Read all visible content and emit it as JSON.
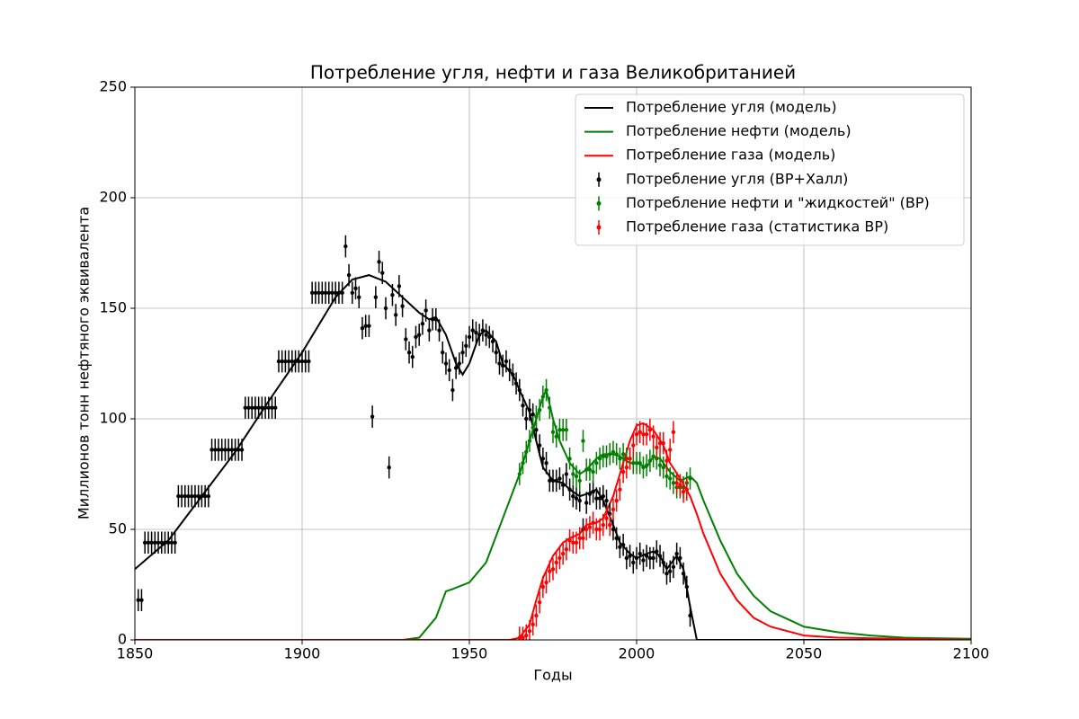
{
  "chart_data": {
    "type": "line",
    "title": "Потребление угля, нефти и газа Великобританией",
    "xlabel": "Годы",
    "ylabel": "Миллионов тонн нефтяного эквивалента",
    "xlim": [
      1850,
      2100
    ],
    "ylim": [
      0,
      250
    ],
    "xticks": [
      1850,
      1900,
      1950,
      2000,
      2050,
      2100
    ],
    "yticks": [
      0,
      50,
      100,
      150,
      200,
      250
    ],
    "grid": true,
    "legend": "upper right",
    "series": [
      {
        "name": "Потребление угля (модель)",
        "type": "line",
        "color": "#000000",
        "x": [
          1850,
          1860,
          1870,
          1880,
          1890,
          1900,
          1910,
          1915,
          1920,
          1925,
          1930,
          1935,
          1938,
          1940,
          1943,
          1946,
          1948,
          1950,
          1953,
          1955,
          1958,
          1960,
          1963,
          1965,
          1968,
          1970,
          1972,
          1975,
          1978,
          1980,
          1983,
          1985,
          1988,
          1990,
          1993,
          1995,
          1998,
          2000,
          2003,
          2005,
          2007,
          2009,
          2012,
          2014,
          2016,
          2018,
          2020,
          2100
        ],
        "values": [
          32,
          45,
          65,
          85,
          108,
          130,
          155,
          163,
          165,
          162,
          155,
          148,
          145,
          146,
          138,
          125,
          120,
          125,
          138,
          140,
          135,
          125,
          120,
          113,
          103,
          90,
          78,
          72,
          71,
          68,
          65,
          66,
          68,
          63,
          52,
          44,
          39,
          37,
          39,
          40,
          38,
          32,
          38,
          32,
          15,
          0,
          0,
          0
        ]
      },
      {
        "name": "Потребление нефти (модель)",
        "type": "line",
        "color": "#008000",
        "x": [
          1850,
          1930,
          1935,
          1940,
          1943,
          1945,
          1950,
          1955,
          1960,
          1965,
          1968,
          1970,
          1972,
          1973,
          1975,
          1977,
          1980,
          1983,
          1985,
          1988,
          1990,
          1993,
          1995,
          1998,
          2000,
          2003,
          2005,
          2007,
          2010,
          2013,
          2016,
          2018,
          2020,
          2025,
          2030,
          2035,
          2040,
          2050,
          2060,
          2070,
          2080,
          2100
        ],
        "values": [
          0,
          0,
          1,
          10,
          22,
          23,
          26,
          35,
          55,
          75,
          90,
          100,
          110,
          113,
          100,
          90,
          80,
          75,
          77,
          82,
          84,
          84,
          83,
          80,
          80,
          78,
          83,
          82,
          76,
          72,
          74,
          71,
          63,
          45,
          30,
          20,
          13,
          6,
          3.5,
          2,
          1,
          0.5
        ]
      },
      {
        "name": "Потребление газа (модель)",
        "type": "line",
        "color": "#ff0000",
        "x": [
          1850,
          1962,
          1965,
          1968,
          1970,
          1972,
          1975,
          1978,
          1980,
          1983,
          1985,
          1988,
          1990,
          1993,
          1995,
          1998,
          2000,
          2002,
          2005,
          2008,
          2010,
          2013,
          2016,
          2018,
          2020,
          2025,
          2030,
          2035,
          2040,
          2050,
          2060,
          2100
        ],
        "values": [
          0,
          0,
          1,
          7,
          18,
          28,
          38,
          44,
          46,
          48,
          52,
          53,
          55,
          65,
          75,
          90,
          97,
          98,
          95,
          88,
          80,
          73,
          65,
          57,
          48,
          30,
          18,
          10,
          6,
          2,
          1,
          0
        ]
      },
      {
        "name": "Потребление угля (BP+Халл)",
        "type": "errorbar",
        "color": "#000000",
        "error": 5,
        "x": [
          1851,
          1852,
          1853,
          1854,
          1855,
          1856,
          1857,
          1858,
          1859,
          1860,
          1861,
          1862,
          1863,
          1864,
          1865,
          1866,
          1867,
          1868,
          1869,
          1870,
          1871,
          1872,
          1873,
          1874,
          1875,
          1876,
          1877,
          1878,
          1879,
          1880,
          1881,
          1882,
          1883,
          1884,
          1885,
          1886,
          1887,
          1888,
          1889,
          1890,
          1891,
          1892,
          1893,
          1894,
          1895,
          1896,
          1897,
          1898,
          1899,
          1900,
          1901,
          1902,
          1903,
          1904,
          1905,
          1906,
          1907,
          1908,
          1909,
          1910,
          1911,
          1912,
          1913,
          1914,
          1915,
          1916,
          1917,
          1918,
          1919,
          1920,
          1921,
          1922,
          1923,
          1924,
          1925,
          1926,
          1927,
          1928,
          1929,
          1930,
          1931,
          1932,
          1933,
          1934,
          1935,
          1936,
          1937,
          1938,
          1939,
          1940,
          1941,
          1942,
          1943,
          1944,
          1945,
          1946,
          1947,
          1948,
          1949,
          1950,
          1951,
          1952,
          1953,
          1954,
          1955,
          1956,
          1957,
          1958,
          1959,
          1960,
          1961,
          1962,
          1963,
          1964,
          1965,
          1966,
          1967,
          1968,
          1969,
          1970,
          1971,
          1972,
          1973,
          1974,
          1975,
          1976,
          1977,
          1978,
          1979,
          1980,
          1981,
          1982,
          1983,
          1984,
          1985,
          1986,
          1987,
          1988,
          1989,
          1990,
          1991,
          1992,
          1993,
          1994,
          1995,
          1996,
          1997,
          1998,
          1999,
          2000,
          2001,
          2002,
          2003,
          2004,
          2005,
          2006,
          2007,
          2008,
          2009,
          2010,
          2011,
          2012,
          2013,
          2014,
          2015,
          2016
        ],
        "values": [
          18,
          18,
          44,
          44,
          44,
          44,
          44,
          44,
          44,
          44,
          44,
          44,
          65,
          65,
          65,
          65,
          65,
          65,
          65,
          65,
          65,
          65,
          86,
          86,
          86,
          86,
          86,
          86,
          86,
          86,
          86,
          86,
          105,
          105,
          105,
          105,
          105,
          105,
          105,
          105,
          105,
          105,
          126,
          126,
          126,
          126,
          126,
          126,
          126,
          126,
          126,
          126,
          157,
          157,
          157,
          157,
          157,
          157,
          157,
          157,
          157,
          157,
          178,
          165,
          157,
          159,
          155,
          141,
          142,
          142,
          101,
          155,
          171,
          166,
          150,
          78,
          156,
          147,
          160,
          151,
          136,
          130,
          128,
          137,
          138,
          143,
          149,
          140,
          145,
          145,
          140,
          130,
          125,
          122,
          113,
          123,
          125,
          130,
          133,
          137,
          140,
          139,
          138,
          140,
          138,
          137,
          135,
          130,
          125,
          124,
          126,
          122,
          120,
          116,
          113,
          106,
          100,
          104,
          102,
          95,
          88,
          82,
          80,
          72,
          72,
          72,
          73,
          70,
          75,
          68,
          65,
          64,
          63,
          50,
          62,
          66,
          67,
          64,
          64,
          65,
          63,
          57,
          50,
          46,
          42,
          43,
          37,
          38,
          35,
          37,
          39,
          36,
          38,
          37,
          37,
          40,
          38,
          35,
          30,
          31,
          33,
          39,
          37,
          30,
          24,
          11
        ]
      },
      {
        "name": "Потребление нефти и \"жидкостей\" (BP)",
        "type": "errorbar",
        "color": "#008000",
        "error": 5,
        "x": [
          1965,
          1966,
          1967,
          1968,
          1969,
          1970,
          1971,
          1972,
          1973,
          1974,
          1975,
          1976,
          1977,
          1978,
          1979,
          1980,
          1981,
          1982,
          1983,
          1984,
          1985,
          1986,
          1987,
          1988,
          1989,
          1990,
          1991,
          1992,
          1993,
          1994,
          1995,
          1996,
          1997,
          1998,
          1999,
          2000,
          2001,
          2002,
          2003,
          2004,
          2005,
          2006,
          2007,
          2008,
          2009,
          2010,
          2011,
          2012,
          2013,
          2014,
          2015,
          2016
        ],
        "values": [
          75,
          80,
          85,
          90,
          96,
          101,
          104,
          110,
          113,
          105,
          94,
          92,
          95,
          95,
          95,
          82,
          75,
          74,
          72,
          90,
          77,
          77,
          76,
          80,
          82,
          83,
          83,
          84,
          85,
          84,
          82,
          84,
          82,
          82,
          80,
          80,
          80,
          78,
          79,
          81,
          83,
          82,
          79,
          78,
          74,
          73,
          71,
          69,
          69,
          69,
          71,
          73
        ]
      },
      {
        "name": "Потребление газа (статистика BP)",
        "type": "errorbar",
        "color": "#ff0000",
        "error": 5,
        "x": [
          1965,
          1966,
          1967,
          1968,
          1969,
          1970,
          1971,
          1972,
          1973,
          1974,
          1975,
          1976,
          1977,
          1978,
          1979,
          1980,
          1981,
          1982,
          1983,
          1984,
          1985,
          1986,
          1987,
          1988,
          1989,
          1990,
          1991,
          1992,
          1993,
          1994,
          1995,
          1996,
          1997,
          1998,
          1999,
          2000,
          2001,
          2002,
          2003,
          2004,
          2005,
          2006,
          2007,
          2008,
          2009,
          2010,
          2011,
          2012,
          2013,
          2014,
          2015
        ],
        "values": [
          1,
          1,
          2,
          4,
          7,
          11,
          17,
          24,
          26,
          31,
          32,
          35,
          37,
          39,
          41,
          45,
          44,
          44,
          46,
          46,
          50,
          51,
          53,
          50,
          50,
          52,
          55,
          52,
          59,
          63,
          68,
          76,
          78,
          82,
          88,
          93,
          94,
          93,
          93,
          95,
          92,
          87,
          89,
          89,
          81,
          86,
          94,
          71,
          70,
          67,
          68
        ]
      }
    ]
  }
}
